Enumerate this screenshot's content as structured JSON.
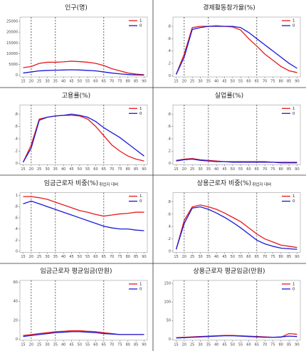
{
  "chart_data": [
    {
      "type": "line",
      "title": "인구(명)",
      "x": [
        15,
        20,
        25,
        30,
        35,
        40,
        45,
        50,
        55,
        60,
        65,
        70,
        75,
        80,
        85,
        90
      ],
      "xlim": [
        13,
        92
      ],
      "xticks": [
        15,
        20,
        25,
        30,
        35,
        40,
        45,
        50,
        55,
        60,
        65,
        70,
        75,
        80,
        85,
        90
      ],
      "vlines": [
        20,
        35,
        65
      ],
      "ylim": [
        -800,
        27000
      ],
      "yticks": [
        0,
        5000,
        10000,
        15000,
        20000,
        25000
      ],
      "series": [
        {
          "name": "1",
          "color": "#e8191c",
          "values": [
            3500,
            4000,
            5500,
            6000,
            6000,
            6200,
            6500,
            6300,
            6000,
            5500,
            4500,
            3000,
            2000,
            1000,
            500,
            200
          ]
        },
        {
          "name": "0",
          "color": "#1a1adb",
          "values": [
            1000,
            1500,
            2000,
            2200,
            2300,
            2400,
            2500,
            2400,
            2200,
            2000,
            1500,
            1000,
            600,
            300,
            100,
            50
          ]
        }
      ]
    },
    {
      "type": "line",
      "title": "경제활동참가율(%)",
      "x": [
        15,
        20,
        25,
        30,
        35,
        40,
        45,
        50,
        55,
        60,
        65,
        70,
        75,
        80,
        85,
        90
      ],
      "xlim": [
        13,
        92
      ],
      "xticks": [
        15,
        20,
        25,
        30,
        35,
        40,
        45,
        50,
        55,
        60,
        65,
        70,
        75,
        80,
        85,
        90
      ],
      "vlines": [
        20,
        35,
        65
      ],
      "ylim": [
        -0.02,
        0.95
      ],
      "yticks": [
        0,
        {
          "value": 0.2,
          "label": ".2"
        },
        {
          "value": 0.4,
          "label": ".4"
        },
        {
          "value": 0.6,
          "label": ".6"
        },
        {
          "value": 0.8,
          "label": ".8"
        }
      ],
      "series": [
        {
          "name": "1",
          "color": "#e8191c",
          "values": [
            0.02,
            0.35,
            0.78,
            0.8,
            0.8,
            0.81,
            0.8,
            0.79,
            0.74,
            0.6,
            0.48,
            0.35,
            0.25,
            0.15,
            0.08,
            0.05
          ]
        },
        {
          "name": "0",
          "color": "#1a1adb",
          "values": [
            0.02,
            0.3,
            0.75,
            0.78,
            0.8,
            0.8,
            0.8,
            0.8,
            0.78,
            0.7,
            0.6,
            0.5,
            0.4,
            0.3,
            0.2,
            0.12
          ]
        }
      ]
    },
    {
      "type": "line",
      "title": "고용률(%)",
      "x": [
        15,
        20,
        25,
        30,
        35,
        40,
        45,
        50,
        55,
        60,
        65,
        70,
        75,
        80,
        85,
        90
      ],
      "xlim": [
        13,
        92
      ],
      "xticks": [
        15,
        20,
        25,
        30,
        35,
        40,
        45,
        50,
        55,
        60,
        65,
        70,
        75,
        80,
        85,
        90
      ],
      "vlines": [
        20,
        35,
        65
      ],
      "ylim": [
        -0.02,
        0.95
      ],
      "yticks": [
        0,
        {
          "value": 0.2,
          "label": ".2"
        },
        {
          "value": 0.4,
          "label": ".4"
        },
        {
          "value": 0.6,
          "label": ".6"
        },
        {
          "value": 0.8,
          "label": ".8"
        }
      ],
      "series": [
        {
          "name": "1",
          "color": "#e8191c",
          "values": [
            0.02,
            0.3,
            0.72,
            0.75,
            0.77,
            0.78,
            0.78,
            0.77,
            0.72,
            0.6,
            0.45,
            0.3,
            0.2,
            0.12,
            0.07,
            0.04
          ]
        },
        {
          "name": "0",
          "color": "#1a1adb",
          "values": [
            0.02,
            0.25,
            0.7,
            0.75,
            0.77,
            0.78,
            0.8,
            0.78,
            0.75,
            0.68,
            0.58,
            0.5,
            0.42,
            0.32,
            0.22,
            0.12
          ]
        }
      ]
    },
    {
      "type": "line",
      "title": "실업률(%)",
      "x": [
        15,
        20,
        25,
        30,
        35,
        40,
        45,
        50,
        55,
        60,
        65,
        70,
        75,
        80,
        85,
        90
      ],
      "xlim": [
        13,
        92
      ],
      "xticks": [
        15,
        20,
        25,
        30,
        35,
        40,
        45,
        50,
        55,
        60,
        65,
        70,
        75,
        80,
        85,
        90
      ],
      "vlines": [
        20,
        35,
        65
      ],
      "ylim": [
        -0.02,
        0.95
      ],
      "yticks": [
        0,
        {
          "value": 0.2,
          "label": ".2"
        },
        {
          "value": 0.4,
          "label": ".4"
        },
        {
          "value": 0.6,
          "label": ".6"
        },
        {
          "value": 0.8,
          "label": ".8"
        }
      ],
      "series": [
        {
          "name": "1",
          "color": "#e8191c",
          "values": [
            0.05,
            0.07,
            0.08,
            0.06,
            0.05,
            0.04,
            0.03,
            0.03,
            0.03,
            0.03,
            0.03,
            0.03,
            0.02,
            0.02,
            0.02,
            0.02
          ]
        },
        {
          "name": "0",
          "color": "#1a1adb",
          "values": [
            0.04,
            0.06,
            0.07,
            0.05,
            0.04,
            0.03,
            0.03,
            0.02,
            0.02,
            0.02,
            0.02,
            0.02,
            0.02,
            0.01,
            0.01,
            0.01
          ]
        }
      ]
    },
    {
      "type": "line",
      "title": "임금근로자 비중(%)",
      "subtitle": "취업자 대비",
      "x": [
        15,
        20,
        25,
        30,
        35,
        40,
        45,
        50,
        55,
        60,
        65,
        70,
        75,
        80,
        85,
        90
      ],
      "xlim": [
        13,
        92
      ],
      "xticks": [
        15,
        20,
        25,
        30,
        35,
        40,
        45,
        50,
        55,
        60,
        65,
        70,
        75,
        80,
        85,
        90
      ],
      "vlines": [
        20,
        35,
        65
      ],
      "ylim": [
        -0.02,
        1.05
      ],
      "yticks": [
        0,
        {
          "value": 0.2,
          "label": ".2"
        },
        {
          "value": 0.4,
          "label": ".4"
        },
        {
          "value": 0.6,
          "label": ".6"
        },
        {
          "value": 0.8,
          "label": ".8"
        },
        1
      ],
      "series": [
        {
          "name": "1",
          "color": "#e8191c",
          "values": [
            0.98,
            0.98,
            0.96,
            0.93,
            0.88,
            0.83,
            0.78,
            0.73,
            0.7,
            0.66,
            0.63,
            0.65,
            0.67,
            0.68,
            0.7,
            0.7
          ]
        },
        {
          "name": "0",
          "color": "#1a1adb",
          "values": [
            0.85,
            0.9,
            0.85,
            0.8,
            0.75,
            0.7,
            0.65,
            0.6,
            0.55,
            0.5,
            0.45,
            0.42,
            0.4,
            0.4,
            0.38,
            0.37
          ]
        }
      ]
    },
    {
      "type": "line",
      "title": "상용근로자 비중(%)",
      "subtitle": "취업자 대비",
      "x": [
        15,
        20,
        25,
        30,
        35,
        40,
        45,
        50,
        55,
        60,
        65,
        70,
        75,
        80,
        85,
        90
      ],
      "xlim": [
        13,
        92
      ],
      "xticks": [
        15,
        20,
        25,
        30,
        35,
        40,
        45,
        50,
        55,
        60,
        65,
        70,
        75,
        80,
        85,
        90
      ],
      "vlines": [
        20,
        35,
        65
      ],
      "ylim": [
        -0.02,
        0.95
      ],
      "yticks": [
        0,
        {
          "value": 0.2,
          "label": ".2"
        },
        {
          "value": 0.4,
          "label": ".4"
        },
        {
          "value": 0.6,
          "label": ".6"
        },
        {
          "value": 0.8,
          "label": ".8"
        }
      ],
      "series": [
        {
          "name": "1",
          "color": "#e8191c",
          "values": [
            0.03,
            0.5,
            0.72,
            0.75,
            0.72,
            0.68,
            0.62,
            0.55,
            0.48,
            0.38,
            0.28,
            0.2,
            0.15,
            0.1,
            0.08,
            0.06
          ]
        },
        {
          "name": "0",
          "color": "#1a1adb",
          "values": [
            0.03,
            0.45,
            0.7,
            0.72,
            0.68,
            0.62,
            0.55,
            0.47,
            0.38,
            0.28,
            0.18,
            0.12,
            0.08,
            0.05,
            0.04,
            0.03
          ]
        }
      ]
    },
    {
      "type": "line",
      "title": "임금근로자 평균임금(만원)",
      "x": [
        15,
        20,
        25,
        30,
        35,
        40,
        45,
        50,
        55,
        60,
        65,
        70,
        75,
        80,
        85,
        90
      ],
      "xlim": [
        13,
        92
      ],
      "xticks": [
        15,
        20,
        25,
        30,
        35,
        40,
        45,
        50,
        55,
        60,
        65,
        70,
        75,
        80,
        85,
        90
      ],
      "vlines": [
        20,
        35,
        65
      ],
      "ylim": [
        -1,
        62
      ],
      "yticks": [
        0,
        20,
        40,
        60
      ],
      "series": [
        {
          "name": "1",
          "color": "#e8191c",
          "values": [
            4,
            5,
            6,
            7,
            8,
            8.5,
            9,
            9,
            8.5,
            8,
            7,
            6,
            5,
            5,
            5,
            5
          ]
        },
        {
          "name": "0",
          "color": "#1a1adb",
          "values": [
            3,
            4,
            5,
            6,
            7,
            7.5,
            8,
            8,
            7.5,
            7,
            6,
            5.5,
            5,
            5,
            5,
            5
          ]
        }
      ]
    },
    {
      "type": "line",
      "title": "상용근로자 평균임금(만원)",
      "x": [
        15,
        20,
        25,
        30,
        35,
        40,
        45,
        50,
        55,
        60,
        65,
        70,
        75,
        80,
        85,
        90
      ],
      "xlim": [
        13,
        92
      ],
      "xticks": [
        15,
        20,
        25,
        30,
        35,
        40,
        45,
        50,
        55,
        60,
        65,
        70,
        75,
        80,
        85,
        90
      ],
      "vlines": [
        20,
        35,
        65
      ],
      "ylim": [
        -3,
        158
      ],
      "yticks": [
        0,
        50,
        100,
        150
      ],
      "series": [
        {
          "name": "1",
          "color": "#e8191c",
          "values": [
            4,
            5,
            6,
            7,
            8,
            9,
            10,
            10,
            9,
            8,
            7,
            6,
            5,
            5,
            15,
            13
          ]
        },
        {
          "name": "0",
          "color": "#1a1adb",
          "values": [
            3,
            4,
            5,
            6,
            7,
            8,
            9,
            9,
            8,
            7,
            6,
            5,
            5,
            6,
            8,
            7
          ]
        }
      ]
    }
  ]
}
